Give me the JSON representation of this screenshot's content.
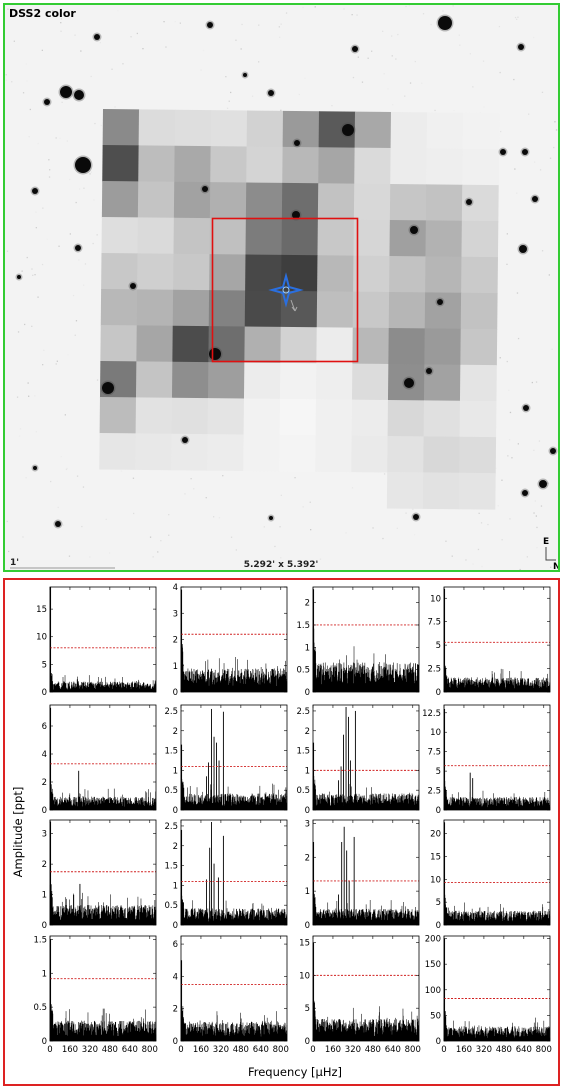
{
  "image_panel": {
    "label": "DSS2 color",
    "fov": "5.292' x 5.392'",
    "scale_label": "1'",
    "compass_e": "E",
    "compass_n": "N"
  },
  "chart_data": {
    "type": "line",
    "title": "",
    "xlabel": "Frequency [μHz]",
    "ylabel": "Amplitude [ppt]",
    "xlim": [
      0,
      850
    ],
    "xticks": [
      0,
      160,
      320,
      480,
      640,
      800
    ],
    "grid": false,
    "panels": [
      {
        "row": 0,
        "col": 0,
        "ylim": [
          0,
          19
        ],
        "yticks": [
          0,
          5,
          10,
          15
        ],
        "threshold": 8.0,
        "noise": 1.6,
        "peak0": 19,
        "peaks": []
      },
      {
        "row": 0,
        "col": 1,
        "ylim": [
          0,
          4.0
        ],
        "yticks": [
          0,
          1,
          2,
          3,
          4
        ],
        "threshold": 2.2,
        "noise": 0.75,
        "peak0": 3.9,
        "peaks": []
      },
      {
        "row": 0,
        "col": 2,
        "ylim": [
          0,
          2.35
        ],
        "yticks": [
          0.0,
          0.5,
          1.0,
          1.5,
          2.0
        ],
        "threshold": 1.5,
        "noise": 0.55,
        "peak0": 2.3,
        "peaks": []
      },
      {
        "row": 0,
        "col": 3,
        "ylim": [
          0,
          11.2
        ],
        "yticks": [
          0.0,
          2.5,
          5.0,
          7.5,
          10.0
        ],
        "threshold": 5.3,
        "noise": 1.3,
        "peak0": 11,
        "peaks": []
      },
      {
        "row": 1,
        "col": 0,
        "ylim": [
          0,
          7.5
        ],
        "yticks": [
          0,
          2,
          4,
          6
        ],
        "threshold": 3.3,
        "noise": 0.8,
        "peak0": 7.3,
        "peaks": [
          {
            "x": 230,
            "y": 2.8
          }
        ]
      },
      {
        "row": 1,
        "col": 1,
        "ylim": [
          0,
          2.65
        ],
        "yticks": [
          0.0,
          0.5,
          1.0,
          1.5,
          2.0,
          2.5
        ],
        "threshold": 1.1,
        "noise": 0.35,
        "peak0": 1.65,
        "peaks": [
          {
            "x": 205,
            "y": 0.85
          },
          {
            "x": 220,
            "y": 1.2
          },
          {
            "x": 245,
            "y": 2.55
          },
          {
            "x": 265,
            "y": 1.85
          },
          {
            "x": 285,
            "y": 1.7
          },
          {
            "x": 305,
            "y": 1.25
          },
          {
            "x": 340,
            "y": 2.48
          }
        ]
      },
      {
        "row": 1,
        "col": 2,
        "ylim": [
          0,
          2.65
        ],
        "yticks": [
          0.0,
          0.5,
          1.0,
          1.5,
          2.0,
          2.5
        ],
        "threshold": 1.0,
        "noise": 0.35,
        "peak0": 1.7,
        "peaks": [
          {
            "x": 205,
            "y": 0.75
          },
          {
            "x": 225,
            "y": 1.1
          },
          {
            "x": 245,
            "y": 1.9
          },
          {
            "x": 265,
            "y": 2.6
          },
          {
            "x": 285,
            "y": 2.35
          },
          {
            "x": 300,
            "y": 1.25
          },
          {
            "x": 340,
            "y": 2.5
          }
        ]
      },
      {
        "row": 1,
        "col": 3,
        "ylim": [
          0,
          13.5
        ],
        "yticks": [
          0.0,
          2.5,
          5.0,
          7.5,
          10.0,
          12.5
        ],
        "threshold": 5.7,
        "noise": 1.4,
        "peak0": 13,
        "peaks": [
          {
            "x": 210,
            "y": 4.8
          },
          {
            "x": 230,
            "y": 4.1
          }
        ]
      },
      {
        "row": 2,
        "col": 0,
        "ylim": [
          0,
          3.45
        ],
        "yticks": [
          0,
          1,
          2,
          3
        ],
        "threshold": 1.75,
        "noise": 0.55,
        "peak0": 3.4,
        "peaks": [
          {
            "x": 240,
            "y": 1.35
          }
        ]
      },
      {
        "row": 2,
        "col": 1,
        "ylim": [
          0,
          2.65
        ],
        "yticks": [
          0.0,
          0.5,
          1.0,
          1.5,
          2.0,
          2.5
        ],
        "threshold": 1.1,
        "noise": 0.35,
        "peak0": 2.4,
        "peaks": [
          {
            "x": 205,
            "y": 1.15
          },
          {
            "x": 230,
            "y": 1.95
          },
          {
            "x": 245,
            "y": 2.6
          },
          {
            "x": 265,
            "y": 1.55
          },
          {
            "x": 300,
            "y": 1.2
          },
          {
            "x": 340,
            "y": 2.25
          }
        ]
      },
      {
        "row": 2,
        "col": 2,
        "ylim": [
          0,
          3.1
        ],
        "yticks": [
          0,
          1,
          2,
          3
        ],
        "threshold": 1.3,
        "noise": 0.4,
        "peak0": 2.45,
        "peaks": [
          {
            "x": 205,
            "y": 0.9
          },
          {
            "x": 230,
            "y": 2.45
          },
          {
            "x": 250,
            "y": 2.9
          },
          {
            "x": 270,
            "y": 2.2
          },
          {
            "x": 290,
            "y": 1.3
          },
          {
            "x": 330,
            "y": 2.6
          }
        ]
      },
      {
        "row": 2,
        "col": 3,
        "ylim": [
          0,
          23
        ],
        "yticks": [
          0,
          5,
          10,
          15,
          20
        ],
        "threshold": 9.3,
        "noise": 2.6,
        "peak0": 22.5,
        "peaks": []
      },
      {
        "row": 3,
        "col": 0,
        "ylim": [
          0,
          1.55
        ],
        "yticks": [
          0.0,
          0.5,
          1.0,
          1.5
        ],
        "threshold": 0.92,
        "noise": 0.25,
        "peak0": 1.5,
        "peaks": []
      },
      {
        "row": 3,
        "col": 1,
        "ylim": [
          0,
          6.5
        ],
        "yticks": [
          0,
          2,
          4,
          6
        ],
        "threshold": 3.5,
        "noise": 1.0,
        "peak0": 5.0,
        "peaks": []
      },
      {
        "row": 3,
        "col": 2,
        "ylim": [
          0,
          16
        ],
        "yticks": [
          0,
          5,
          10,
          15
        ],
        "threshold": 10.0,
        "noise": 2.8,
        "peak0": 15,
        "peaks": []
      },
      {
        "row": 3,
        "col": 3,
        "ylim": [
          0,
          205
        ],
        "yticks": [
          0,
          50,
          100,
          150,
          200
        ],
        "threshold": 83,
        "noise": 24,
        "peak0": 200,
        "peaks": []
      }
    ]
  }
}
